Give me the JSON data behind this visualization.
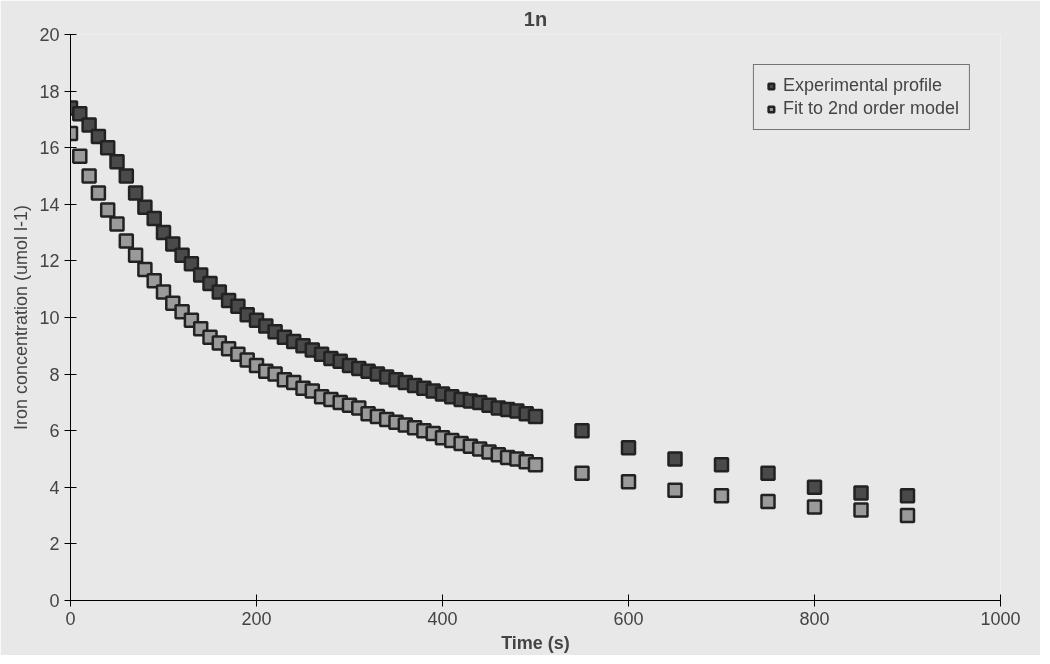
{
  "chart_data": {
    "type": "scatter",
    "title": "1n",
    "xlabel": "Time (s)",
    "ylabel": "Iron concentration (umol l-1)",
    "xlim": [
      0,
      1000
    ],
    "ylim": [
      0,
      20
    ],
    "xticks": [
      0,
      200,
      400,
      600,
      800,
      1000
    ],
    "yticks": [
      0,
      2,
      4,
      6,
      8,
      10,
      12,
      14,
      16,
      18,
      20
    ],
    "legend": "top right",
    "marker": "square",
    "series": [
      {
        "name": "Experimental profile",
        "color": "#4a4a4a",
        "x": [
          0,
          10,
          20,
          30,
          40,
          50,
          60,
          70,
          80,
          90,
          100,
          110,
          120,
          130,
          140,
          150,
          160,
          170,
          180,
          190,
          200,
          210,
          220,
          230,
          240,
          250,
          260,
          270,
          280,
          290,
          300,
          310,
          320,
          330,
          340,
          350,
          360,
          370,
          380,
          390,
          400,
          410,
          420,
          430,
          440,
          450,
          460,
          470,
          480,
          490,
          500,
          550,
          600,
          650,
          700,
          750,
          800,
          850,
          900
        ],
        "values": [
          17.4,
          17.2,
          16.8,
          16.4,
          16.0,
          15.5,
          15.0,
          14.4,
          13.9,
          13.5,
          13.0,
          12.6,
          12.2,
          11.9,
          11.5,
          11.2,
          10.9,
          10.6,
          10.4,
          10.1,
          9.9,
          9.7,
          9.5,
          9.3,
          9.15,
          9.0,
          8.85,
          8.7,
          8.55,
          8.45,
          8.3,
          8.2,
          8.1,
          8.0,
          7.9,
          7.8,
          7.7,
          7.6,
          7.5,
          7.4,
          7.3,
          7.2,
          7.1,
          7.05,
          7.0,
          6.9,
          6.8,
          6.75,
          6.7,
          6.6,
          6.5,
          6.0,
          5.4,
          5.0,
          4.8,
          4.5,
          4.0,
          3.8,
          3.7
        ]
      },
      {
        "name": "Fit to 2nd order model",
        "color": "#9a9a9a",
        "x": [
          0,
          10,
          20,
          30,
          40,
          50,
          60,
          70,
          80,
          90,
          100,
          110,
          120,
          130,
          140,
          150,
          160,
          170,
          180,
          190,
          200,
          210,
          220,
          230,
          240,
          250,
          260,
          270,
          280,
          290,
          300,
          310,
          320,
          330,
          340,
          350,
          360,
          370,
          380,
          390,
          400,
          410,
          420,
          430,
          440,
          450,
          460,
          470,
          480,
          490,
          500,
          550,
          600,
          650,
          700,
          750,
          800,
          850,
          900
        ],
        "values": [
          16.5,
          15.7,
          15.0,
          14.4,
          13.8,
          13.3,
          12.7,
          12.2,
          11.7,
          11.3,
          10.9,
          10.5,
          10.2,
          9.9,
          9.6,
          9.3,
          9.1,
          8.9,
          8.7,
          8.5,
          8.3,
          8.1,
          8.0,
          7.8,
          7.7,
          7.5,
          7.4,
          7.2,
          7.1,
          7.0,
          6.9,
          6.8,
          6.6,
          6.5,
          6.4,
          6.3,
          6.2,
          6.1,
          6.0,
          5.9,
          5.75,
          5.65,
          5.55,
          5.45,
          5.35,
          5.25,
          5.15,
          5.05,
          5.0,
          4.9,
          4.8,
          4.5,
          4.2,
          3.9,
          3.7,
          3.5,
          3.3,
          3.2,
          3.0
        ]
      }
    ]
  }
}
